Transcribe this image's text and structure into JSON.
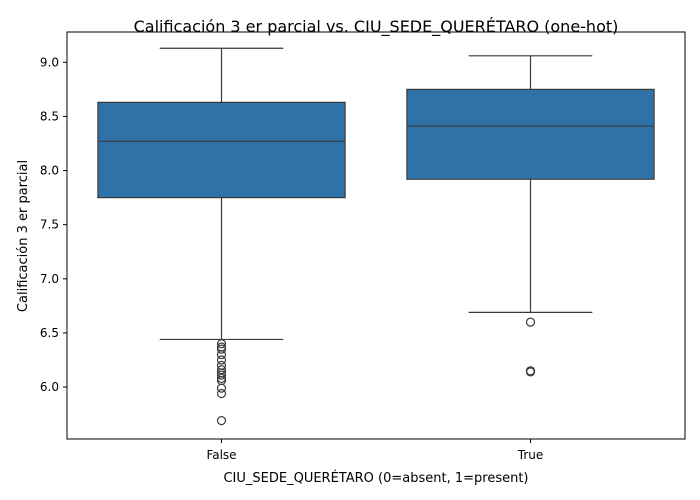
{
  "chart_data": {
    "type": "box",
    "title": "Calificación 3 er parcial vs. CIU_SEDE_QUERÉTARO (one-hot)",
    "xlabel": "CIU_SEDE_QUERÉTARO (0=absent, 1=present)",
    "ylabel": "Calificación 3 er parcial",
    "categories": [
      "False",
      "True"
    ],
    "ylim": [
      5.52,
      9.28
    ],
    "yticks": [
      6.0,
      6.5,
      7.0,
      7.5,
      8.0,
      8.5,
      9.0
    ],
    "ytick_labels": [
      "6.0",
      "6.5",
      "7.0",
      "7.5",
      "8.0",
      "8.5",
      "9.0"
    ],
    "grid": false,
    "box_color": "#2f72a8",
    "line_color": "#3a3a3a",
    "boxes": [
      {
        "category": "False",
        "whisker_low": 6.44,
        "q1": 7.75,
        "median": 8.27,
        "q3": 8.63,
        "whisker_high": 9.13,
        "outliers": [
          6.4,
          6.37,
          6.35,
          6.3,
          6.25,
          6.2,
          6.16,
          6.13,
          6.11,
          6.08,
          6.06,
          5.99,
          5.94,
          5.69
        ]
      },
      {
        "category": "True",
        "whisker_low": 6.69,
        "q1": 7.92,
        "median": 8.41,
        "q3": 8.75,
        "whisker_high": 9.06,
        "outliers": [
          6.6,
          6.15,
          6.14
        ]
      }
    ]
  }
}
